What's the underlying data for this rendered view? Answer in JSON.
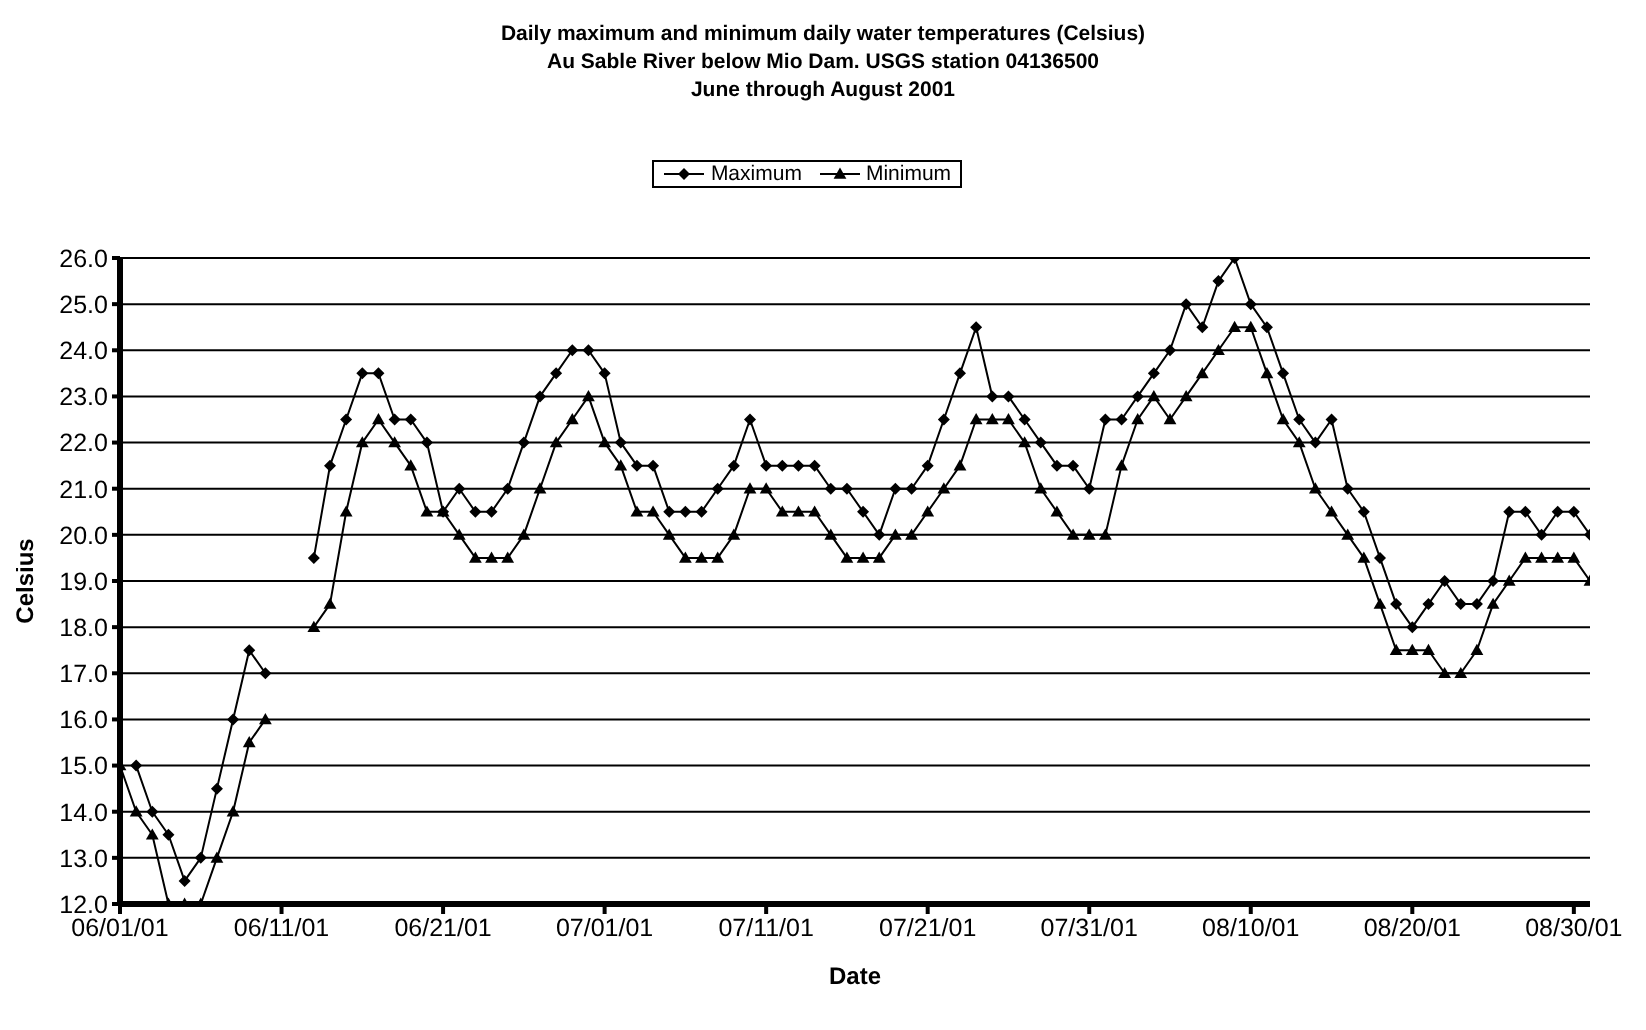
{
  "chart_data": {
    "type": "line",
    "title": "Daily maximum and minimum daily water temperatures (Celsius)\nAu Sable River below Mio Dam.  USGS station 04136500\nJune through August 2001",
    "xlabel": "Date",
    "ylabel": "Celsius",
    "categories": [
      "06/01/01",
      null,
      null,
      null,
      null,
      null,
      null,
      null,
      null,
      null,
      "06/11/01",
      null,
      null,
      null,
      null,
      null,
      null,
      null,
      null,
      null,
      "06/21/01",
      null,
      null,
      null,
      null,
      null,
      null,
      null,
      null,
      null,
      "07/01/01",
      null,
      null,
      null,
      null,
      null,
      null,
      null,
      null,
      null,
      "07/11/01",
      null,
      null,
      null,
      null,
      null,
      null,
      null,
      null,
      null,
      "07/21/01",
      null,
      null,
      null,
      null,
      null,
      null,
      null,
      null,
      null,
      "07/31/01",
      null,
      null,
      null,
      null,
      null,
      null,
      null,
      null,
      null,
      "08/10/01",
      null,
      null,
      null,
      null,
      null,
      null,
      null,
      null,
      null,
      "08/20/01",
      null,
      null,
      null,
      null,
      null,
      null,
      null,
      null,
      null,
      "08/30/01",
      null
    ],
    "series": [
      {
        "name": "Maximum",
        "color": "#000000",
        "marker": "diamond",
        "values": [
          null,
          15.0,
          14.0,
          13.5,
          12.5,
          13.0,
          14.5,
          16.0,
          17.5,
          17.0,
          null,
          null,
          19.5,
          21.5,
          22.5,
          23.5,
          23.5,
          22.5,
          22.5,
          22.0,
          20.5,
          21.0,
          20.5,
          20.5,
          21.0,
          22.0,
          23.0,
          23.5,
          24.0,
          24.0,
          23.5,
          22.0,
          21.5,
          21.5,
          20.5,
          20.5,
          20.5,
          21.0,
          21.5,
          22.5,
          21.5,
          21.5,
          21.5,
          21.5,
          21.0,
          21.0,
          20.5,
          20.0,
          21.0,
          21.0,
          21.5,
          22.5,
          23.5,
          24.5,
          23.0,
          23.0,
          22.5,
          22.0,
          21.5,
          21.5,
          21.0,
          22.5,
          22.5,
          23.0,
          23.5,
          24.0,
          25.0,
          24.5,
          25.5,
          26.0,
          25.0,
          24.5,
          23.5,
          22.5,
          22.0,
          22.5,
          21.0,
          20.5,
          19.5,
          18.5,
          18.0,
          18.5,
          19.0,
          18.5,
          18.5,
          19.0,
          20.5,
          20.5,
          20.0,
          20.5,
          20.5,
          20.0
        ]
      },
      {
        "name": "Minimum",
        "color": "#000000",
        "marker": "triangle",
        "values": [
          15.0,
          14.0,
          13.5,
          12.0,
          12.0,
          12.0,
          13.0,
          14.0,
          15.5,
          16.0,
          null,
          null,
          18.0,
          18.5,
          20.5,
          22.0,
          22.5,
          22.0,
          21.5,
          20.5,
          20.5,
          20.0,
          19.5,
          19.5,
          19.5,
          20.0,
          21.0,
          22.0,
          22.5,
          23.0,
          22.0,
          21.5,
          20.5,
          20.5,
          20.0,
          19.5,
          19.5,
          19.5,
          20.0,
          21.0,
          21.0,
          20.5,
          20.5,
          20.5,
          20.0,
          19.5,
          19.5,
          19.5,
          20.0,
          20.0,
          20.5,
          21.0,
          21.5,
          22.5,
          22.5,
          22.5,
          22.0,
          21.0,
          20.5,
          20.0,
          20.0,
          20.0,
          21.5,
          22.5,
          23.0,
          22.5,
          23.0,
          23.5,
          24.0,
          24.5,
          24.5,
          23.5,
          22.5,
          22.0,
          21.0,
          20.5,
          20.0,
          19.5,
          18.5,
          17.5,
          17.5,
          17.5,
          17.0,
          17.0,
          17.5,
          18.5,
          19.0,
          19.5,
          19.5,
          19.5,
          19.5,
          19.0
        ]
      }
    ],
    "ylim": [
      12,
      26
    ],
    "yticks": [
      {
        "value": 12,
        "label": "12.0"
      },
      {
        "value": 13,
        "label": "13.0"
      },
      {
        "value": 14,
        "label": "14.0"
      },
      {
        "value": 15,
        "label": "15.0"
      },
      {
        "value": 16,
        "label": "16.0"
      },
      {
        "value": 17,
        "label": "17.0"
      },
      {
        "value": 18,
        "label": "18.0"
      },
      {
        "value": 19,
        "label": "19.0"
      },
      {
        "value": 20,
        "label": "20.0"
      },
      {
        "value": 21,
        "label": "21.0"
      },
      {
        "value": 22,
        "label": "22.0"
      },
      {
        "value": 23,
        "label": "23.0"
      },
      {
        "value": 24,
        "label": "24.0"
      },
      {
        "value": 25,
        "label": "25.0"
      },
      {
        "value": 26,
        "label": "26.0"
      }
    ],
    "grid": "y",
    "legend": "top"
  }
}
